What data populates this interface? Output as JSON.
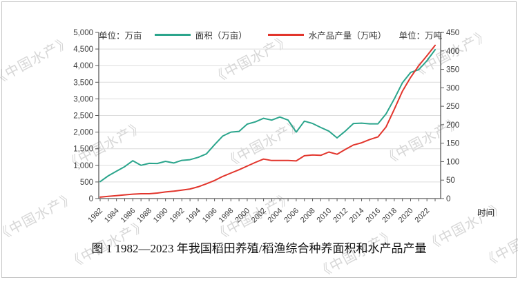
{
  "watermark": "《中国水产》",
  "units": {
    "left": "单位：万亩",
    "right": "单位：万吨"
  },
  "legend": [
    {
      "label": "面积（万亩）"
    },
    {
      "label": "水产品产量（万吨）"
    }
  ],
  "x_axis_title": "时间",
  "caption": "图 1 1982—2023 年我国稻田养殖/稻渔综合种养面积和水产品产量",
  "chart_data": {
    "type": "line",
    "title": "图 1 1982—2023 年我国稻田养殖/稻渔综合种养面积和水产品产量",
    "xlabel": "时间",
    "x": [
      1982,
      1983,
      1984,
      1985,
      1986,
      1987,
      1988,
      1989,
      1990,
      1991,
      1992,
      1993,
      1994,
      1995,
      1996,
      1997,
      1998,
      1999,
      2000,
      2001,
      2002,
      2003,
      2004,
      2005,
      2006,
      2007,
      2008,
      2009,
      2010,
      2011,
      2012,
      2013,
      2014,
      2015,
      2016,
      2017,
      2018,
      2019,
      2020,
      2021,
      2022,
      2023
    ],
    "series": [
      {
        "name": "面积（万亩）",
        "axis": "left",
        "color": "#2BA58C",
        "values": [
          510,
          685,
          825,
          960,
          1140,
          1000,
          1060,
          1055,
          1120,
          1070,
          1150,
          1170,
          1240,
          1345,
          1620,
          1880,
          2000,
          2020,
          2240,
          2310,
          2415,
          2360,
          2455,
          2360,
          2000,
          2330,
          2260,
          2140,
          2030,
          1825,
          2030,
          2260,
          2270,
          2250,
          2250,
          2550,
          3000,
          3485,
          3795,
          3880,
          4150,
          4480
        ]
      },
      {
        "name": "水产品产量（万吨）",
        "axis": "right",
        "color": "#E2352C",
        "values": [
          4,
          6,
          8,
          10,
          12,
          13,
          13,
          15,
          18,
          20,
          23,
          26,
          32,
          40,
          49,
          60,
          69,
          78,
          88,
          98,
          107,
          103,
          103,
          103,
          102,
          116,
          118,
          117,
          126,
          120,
          133,
          145,
          151,
          160,
          167,
          194,
          242,
          291,
          328,
          360,
          387,
          415
        ]
      }
    ],
    "left_axis": {
      "min": 0,
      "max": 5000,
      "step": 500,
      "unit": "万亩"
    },
    "right_axis": {
      "min": 0,
      "max": 450,
      "step": 50,
      "unit": "万吨"
    },
    "x_tick_labels": [
      "1982",
      "1984",
      "1986",
      "1988",
      "1990",
      "1992",
      "1994",
      "1996",
      "1998",
      "2000",
      "2002",
      "2004",
      "2006",
      "2008",
      "2010",
      "2012",
      "2014",
      "2016",
      "2018",
      "2020",
      "2022"
    ],
    "grid": "horizontal",
    "legend_position": "top-center"
  }
}
